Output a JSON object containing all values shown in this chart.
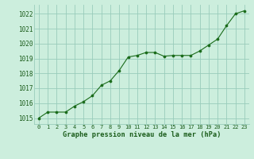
{
  "x": [
    0,
    1,
    2,
    3,
    4,
    5,
    6,
    7,
    8,
    9,
    10,
    11,
    12,
    13,
    14,
    15,
    16,
    17,
    18,
    19,
    20,
    21,
    22,
    23
  ],
  "y": [
    1015.0,
    1015.4,
    1015.4,
    1015.4,
    1015.8,
    1016.1,
    1016.5,
    1017.2,
    1017.5,
    1018.2,
    1019.1,
    1019.2,
    1019.4,
    1019.4,
    1019.15,
    1019.2,
    1019.2,
    1019.2,
    1019.5,
    1019.9,
    1020.3,
    1021.2,
    1022.0,
    1022.2
  ],
  "line_color": "#1a6b1a",
  "marker_color": "#1a6b1a",
  "bg_color": "#cceedd",
  "grid_color": "#99ccbb",
  "xlabel": "Graphe pression niveau de la mer (hPa)",
  "xlabel_color": "#1a5c1a",
  "tick_color": "#1a5c1a",
  "ylim_min": 1014.6,
  "ylim_max": 1022.6,
  "xlim_min": -0.5,
  "xlim_max": 23.5,
  "yticks": [
    1015,
    1016,
    1017,
    1018,
    1019,
    1020,
    1021,
    1022
  ],
  "xticks": [
    0,
    1,
    2,
    3,
    4,
    5,
    6,
    7,
    8,
    9,
    10,
    11,
    12,
    13,
    14,
    15,
    16,
    17,
    18,
    19,
    20,
    21,
    22,
    23
  ]
}
